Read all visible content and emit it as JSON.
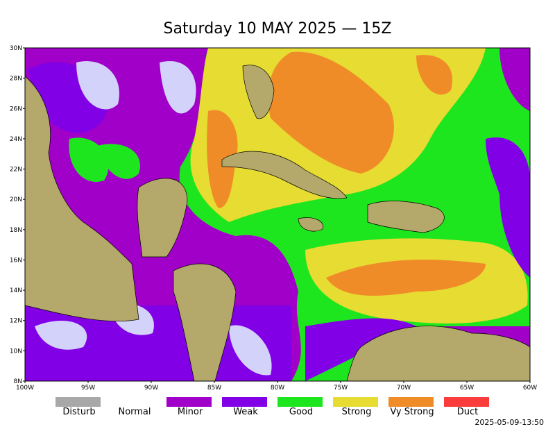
{
  "title": "Saturday 10 MAY 2025 — 15Z",
  "lat_labels": [
    "30N",
    "28N",
    "26N",
    "24N",
    "22N",
    "20N",
    "18N",
    "16N",
    "14N",
    "12N",
    "10N",
    "8N"
  ],
  "lon_labels": [
    "100W",
    "95W",
    "90W",
    "85W",
    "80W",
    "75W",
    "70W",
    "65W",
    "60W"
  ],
  "legend": [
    {
      "label": "Disturb",
      "color": "#a8a8a8"
    },
    {
      "label": "Normal",
      "color": "#ffffff"
    },
    {
      "label": "Minor",
      "color": "#a000c8"
    },
    {
      "label": "Weak",
      "color": "#8200e6"
    },
    {
      "label": "Good",
      "color": "#1ee61e"
    },
    {
      "label": "Strong",
      "color": "#e6dc32"
    },
    {
      "label": "Vy Strong",
      "color": "#f08c28"
    },
    {
      "label": "Duct",
      "color": "#fa3c3c"
    }
  ],
  "timestamp": "2025-05-09-13:50"
}
